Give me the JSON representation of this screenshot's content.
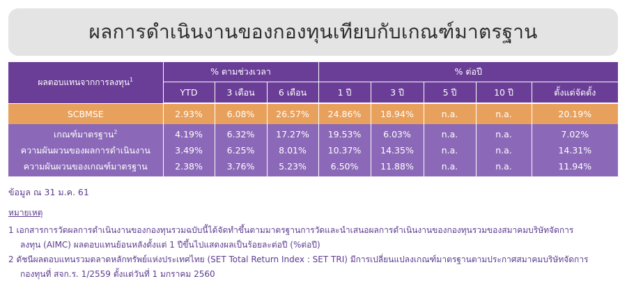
{
  "title": "ผลการดำเนินงานของกองทุนเทียบกับเกณฑ์มาตรฐาน",
  "table": {
    "row_header": "ผลตอบแทนจากการลงทุน",
    "row_header_sup": "1",
    "group_period": "% ตามช่วงเวลา",
    "group_annual": "% ต่อปี",
    "columns": [
      "YTD",
      "3 เดือน",
      "6 เดือน",
      "1 ปี",
      "3 ปี",
      "5 ปี",
      "10 ปี",
      "ตั้งแต่จัดตั้ง"
    ],
    "rows": [
      {
        "label": "SCBMSE",
        "sup": "",
        "values": [
          "2.93%",
          "6.08%",
          "26.57%",
          "24.86%",
          "18.94%",
          "n.a.",
          "n.a.",
          "20.19%"
        ]
      },
      {
        "label": "เกณฑ์มาตรฐาน",
        "sup": "2",
        "values": [
          "4.19%",
          "6.32%",
          "17.27%",
          "19.53%",
          "6.03%",
          "n.a.",
          "n.a.",
          "7.02%"
        ]
      },
      {
        "label": "ความผันผวนของผลการดำเนินงาน",
        "sup": "",
        "values": [
          "3.49%",
          "6.25%",
          "8.01%",
          "10.37%",
          "14.35%",
          "n.a.",
          "n.a.",
          "14.31%"
        ]
      },
      {
        "label": "ความผันผวนของเกณฑ์มาตรฐาน",
        "sup": "",
        "values": [
          "2.38%",
          "3.76%",
          "5.23%",
          "6.50%",
          "11.88%",
          "n.a.",
          "n.a.",
          "11.94%"
        ]
      }
    ]
  },
  "as_of": "ข้อมูล ณ 31 ม.ค. 61",
  "notes": {
    "title": "หมายเหตุ",
    "note1_line1": "1 เอกสารการวัดผลการดำเนินงานของกองทุนรวมฉบับนี้ได้จัดทำขึ้นตามมาตรฐานการวัดและนำเสนอผลการดำเนินงานของกองทุนรวมของสมาคมบริษัทจัดการ",
    "note1_line2": "ลงทุน (AIMC) ผลตอบแทนย้อนหลังตั้งแต่ 1 ปีขึ้นไปแสดงผลเป็นร้อยละต่อปี (%ต่อปี)",
    "note2_line1": "2 ดัชนีผลตอบแทนรวมตลาดหลักทรัพย์แห่งประเทศไทย (SET Total Return Index : SET TRI) มีการเปลี่ยนแปลงเกณฑ์มาตรฐานตามประกาศสมาคมบริษัทจัดการ",
    "note2_line2": "กองทุนที่ สจก.ร. 1/2559 ตั้งแต่วันที่ 1 มกราคม 2560"
  },
  "colors": {
    "header_bg": "#6a3d97",
    "fund_row_bg": "#e8a15c",
    "data_row_bg": "#8b69b8",
    "note_text": "#5b3a8e"
  }
}
